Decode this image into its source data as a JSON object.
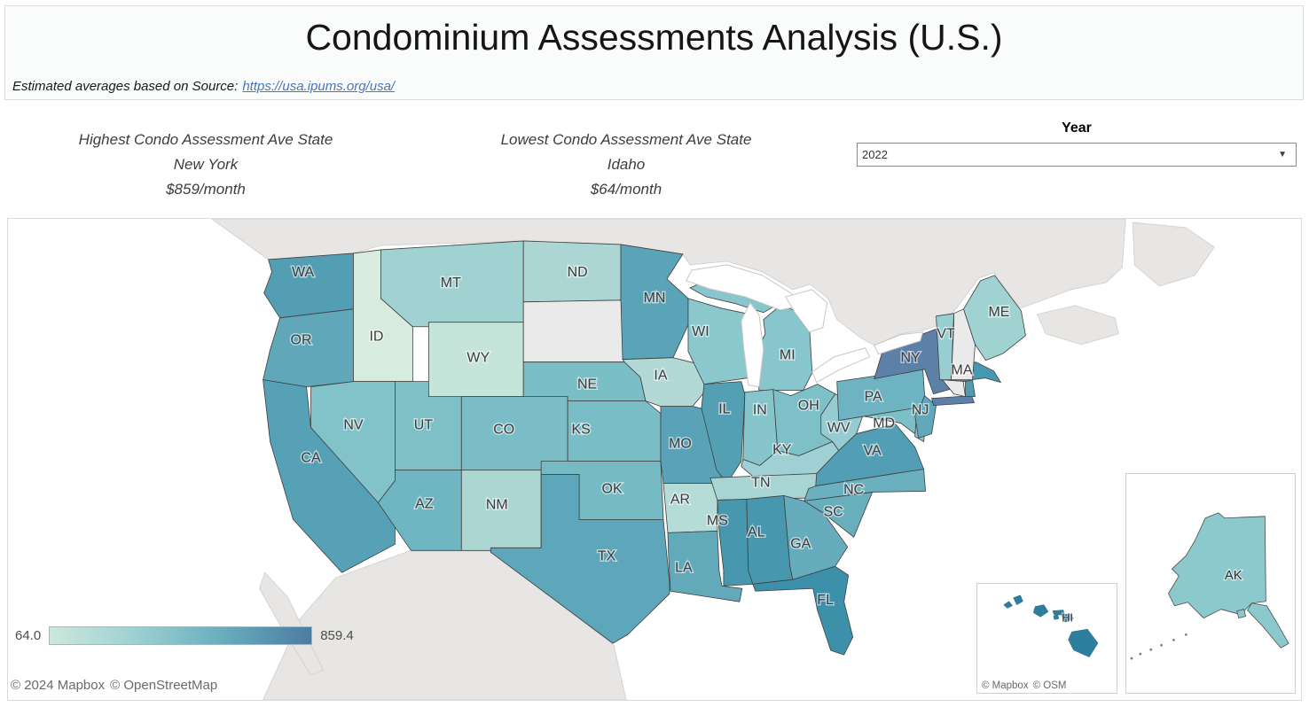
{
  "header": {
    "title": "Condominium Assessments Analysis (U.S.)",
    "subtitle_prefix": "Estimated averages based on Source:",
    "source_link": "https://usa.ipums.org/usa/"
  },
  "stats": {
    "highest": {
      "label": "Highest Condo Assessment Ave State",
      "state": "New York",
      "value": "$859/month"
    },
    "lowest": {
      "label": "Lowest Condo Assessment Ave State",
      "state": "Idaho",
      "value": "$64/month"
    }
  },
  "year_filter": {
    "label": "Year",
    "selected": "2022"
  },
  "legend": {
    "min": "64.0",
    "max": "859.4",
    "gradient_start": "#cde8db",
    "gradient_mid1": "#9ed1d3",
    "gradient_mid2": "#68aebd",
    "gradient_end": "#4d7ba3"
  },
  "attribution": {
    "mapbox": "© 2024 Mapbox",
    "osm": "© OpenStreetMap"
  },
  "inset_attribution": {
    "mapbox": "© Mapbox",
    "osm": "© OSM"
  },
  "map_colors": {
    "ocean": "#ffffff",
    "other_land": "#e7e6e4",
    "other_land_border": "#d6d4d1",
    "no_data": "#eaeaea",
    "state_border": "#3f3f3f",
    "lake_fill": "#ffffff",
    "lake_border": "#c9c7c4"
  },
  "chart_data": {
    "type": "heatmap",
    "subtype": "us-state-choropleth",
    "title": "Condominium Assessments Analysis (U.S.)",
    "units": "$/month",
    "year": "2022",
    "value_range": [
      64.0,
      859.4
    ],
    "legend_position": "bottom-left",
    "labeled_extremes": {
      "highest": {
        "state": "New York",
        "value": 859
      },
      "lowest": {
        "state": "Idaho",
        "value": 64
      }
    },
    "values_estimated_from_color": true,
    "no_data_states": [
      "SD",
      "NH",
      "CT"
    ],
    "states": [
      {
        "abbr": "WA",
        "fill": "#549eb3",
        "value_est": 560,
        "label_shown": true
      },
      {
        "abbr": "OR",
        "fill": "#60a7ba",
        "value_est": 500,
        "label_shown": true
      },
      {
        "abbr": "CA",
        "fill": "#57a1b6",
        "value_est": 550,
        "label_shown": true
      },
      {
        "abbr": "ID",
        "fill": "#d7ecdf",
        "value_est": 64,
        "label_shown": true
      },
      {
        "abbr": "NV",
        "fill": "#82c2c9",
        "value_est": 360,
        "label_shown": true
      },
      {
        "abbr": "UT",
        "fill": "#7fc0c7",
        "value_est": 370,
        "label_shown": true
      },
      {
        "abbr": "AZ",
        "fill": "#70b6c2",
        "value_est": 410,
        "label_shown": true
      },
      {
        "abbr": "MT",
        "fill": "#a0d2d2",
        "value_est": 250,
        "label_shown": true
      },
      {
        "abbr": "WY",
        "fill": "#c6e5da",
        "value_est": 130,
        "label_shown": true
      },
      {
        "abbr": "CO",
        "fill": "#7abdc6",
        "value_est": 380,
        "label_shown": true
      },
      {
        "abbr": "NM",
        "fill": "#abd6d2",
        "value_est": 240,
        "label_shown": true
      },
      {
        "abbr": "ND",
        "fill": "#abd6d3",
        "value_est": 240,
        "label_shown": true
      },
      {
        "abbr": "SD",
        "fill": "#eaeaea",
        "value_est": null,
        "label_shown": false
      },
      {
        "abbr": "NE",
        "fill": "#7abec6",
        "value_est": 370,
        "label_shown": true
      },
      {
        "abbr": "KS",
        "fill": "#79bdc6",
        "value_est": 370,
        "label_shown": true
      },
      {
        "abbr": "OK",
        "fill": "#76bac4",
        "value_est": 390,
        "label_shown": true
      },
      {
        "abbr": "TX",
        "fill": "#5ea6b9",
        "value_est": 520,
        "label_shown": true
      },
      {
        "abbr": "MN",
        "fill": "#5ba3b7",
        "value_est": 530,
        "label_shown": true
      },
      {
        "abbr": "IA",
        "fill": "#b2d9d6",
        "value_est": 220,
        "label_shown": true
      },
      {
        "abbr": "MO",
        "fill": "#5aa2b7",
        "value_est": 530,
        "label_shown": true
      },
      {
        "abbr": "AR",
        "fill": "#b6dcd8",
        "value_est": 210,
        "label_shown": true
      },
      {
        "abbr": "LA",
        "fill": "#62a9ba",
        "value_est": 470,
        "label_shown": true
      },
      {
        "abbr": "WI",
        "fill": "#8bc8cd",
        "value_est": 320,
        "label_shown": true
      },
      {
        "abbr": "IL",
        "fill": "#539fb4",
        "value_est": 560,
        "label_shown": true
      },
      {
        "abbr": "MI",
        "fill": "#87c6cc",
        "value_est": 330,
        "label_shown": true
      },
      {
        "abbr": "IN",
        "fill": "#85c5cb",
        "value_est": 330,
        "label_shown": true
      },
      {
        "abbr": "OH",
        "fill": "#7ec0c8",
        "value_est": 360,
        "label_shown": true
      },
      {
        "abbr": "KY",
        "fill": "#9fd1d4",
        "value_est": 250,
        "label_shown": true
      },
      {
        "abbr": "TN",
        "fill": "#a8d5d3",
        "value_est": 240,
        "label_shown": true
      },
      {
        "abbr": "MS",
        "fill": "#4797ae",
        "value_est": 600,
        "label_shown": true
      },
      {
        "abbr": "AL",
        "fill": "#4797ae",
        "value_est": 600,
        "label_shown": true
      },
      {
        "abbr": "GA",
        "fill": "#66acbc",
        "value_est": 460,
        "label_shown": true
      },
      {
        "abbr": "FL",
        "fill": "#3d90aa",
        "value_est": 650,
        "label_shown": true
      },
      {
        "abbr": "SC",
        "fill": "#68aebd",
        "value_est": 440,
        "label_shown": true
      },
      {
        "abbr": "NC",
        "fill": "#6ab0bf",
        "value_est": 430,
        "label_shown": true
      },
      {
        "abbr": "VA",
        "fill": "#529eb4",
        "value_est": 560,
        "label_shown": true
      },
      {
        "abbr": "WV",
        "fill": "#96ccd1",
        "value_est": 290,
        "label_shown": true
      },
      {
        "abbr": "MD",
        "fill": "#7cbfc7",
        "value_est": 360,
        "label_shown": true
      },
      {
        "abbr": "DE",
        "fill": "#8cc8cd",
        "value_est": 320,
        "label_shown": false
      },
      {
        "abbr": "PA",
        "fill": "#6eb3c1",
        "value_est": 420,
        "label_shown": true
      },
      {
        "abbr": "NJ",
        "fill": "#60a8ba",
        "value_est": 480,
        "label_shown": true
      },
      {
        "abbr": "NY",
        "fill": "#5c80a8",
        "value_est": 859,
        "label_shown": true
      },
      {
        "abbr": "CT",
        "fill": "#eaeaea",
        "value_est": null,
        "label_shown": false
      },
      {
        "abbr": "RI",
        "fill": "#4f9cb2",
        "value_est": 560,
        "label_shown": false
      },
      {
        "abbr": "MA",
        "fill": "#4898af",
        "value_est": 590,
        "label_shown": true
      },
      {
        "abbr": "VT",
        "fill": "#99ced1",
        "value_est": 280,
        "label_shown": true
      },
      {
        "abbr": "NH",
        "fill": "#eaeaea",
        "value_est": null,
        "label_shown": false
      },
      {
        "abbr": "ME",
        "fill": "#a0d2d2",
        "value_est": 250,
        "label_shown": true
      },
      {
        "abbr": "AK",
        "fill": "#8cc9cc",
        "value_est": 320,
        "label_shown": true
      },
      {
        "abbr": "HI",
        "fill": "#2e7e9d",
        "value_est": 750,
        "label_shown": true
      }
    ]
  }
}
